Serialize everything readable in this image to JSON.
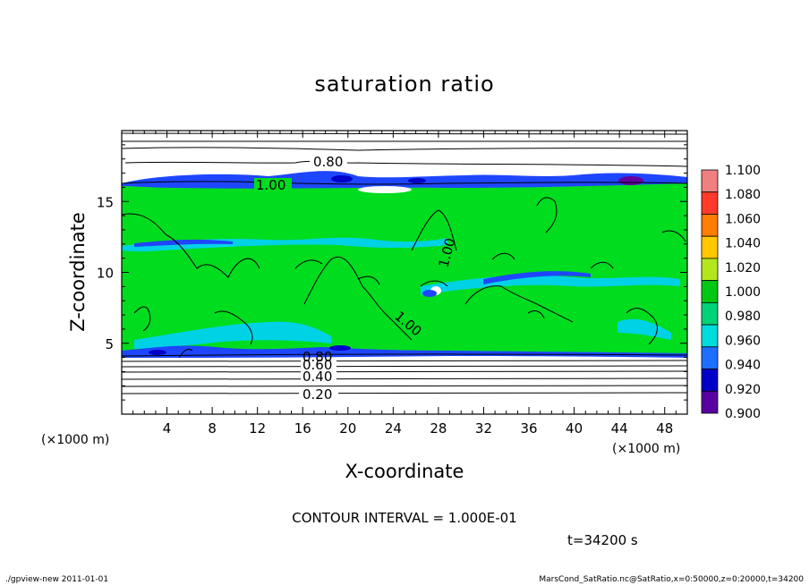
{
  "chart_data": {
    "type": "heatmap",
    "title": "saturation ratio",
    "xlabel": "X-coordinate",
    "ylabel": "Z-coordinate",
    "x_unit": "(×1000 m)",
    "y_unit": "(×1000 m)",
    "xlim": [
      0,
      50
    ],
    "ylim": [
      0,
      20
    ],
    "x_ticks": [
      4,
      8,
      12,
      16,
      20,
      24,
      28,
      32,
      36,
      40,
      44,
      48
    ],
    "y_ticks": [
      5,
      10,
      15
    ],
    "contour_interval_text": "CONTOUR INTERVAL = 1.000E-01",
    "time_text": "t=34200 s",
    "contour_labels": [
      "0.80",
      "1.00",
      "1.00",
      "1.00",
      "0.20",
      "0.40",
      "0.60",
      "0.80"
    ],
    "colorbar": {
      "levels": [
        "1.100",
        "1.080",
        "1.060",
        "1.040",
        "1.020",
        "1.000",
        "0.980",
        "0.960",
        "0.940",
        "0.920",
        "0.900"
      ],
      "colors": [
        "#f08080",
        "#ff3a2a",
        "#ff7d00",
        "#ffc800",
        "#b4e61e",
        "#00c814",
        "#00d278",
        "#00dcdc",
        "#1e6eff",
        "#0000c8",
        "#5a00a0"
      ]
    },
    "field_colors": {
      "green": "#00dc1e",
      "blue": "#1e46ff",
      "cyan": "#00d2e6",
      "purple": "#6400a0"
    }
  },
  "footer": {
    "left": "./gpview-new   2011-01-01",
    "right": "MarsCond_SatRatio.nc@SatRatio,x=0:50000,z=0:20000,t=34200"
  }
}
